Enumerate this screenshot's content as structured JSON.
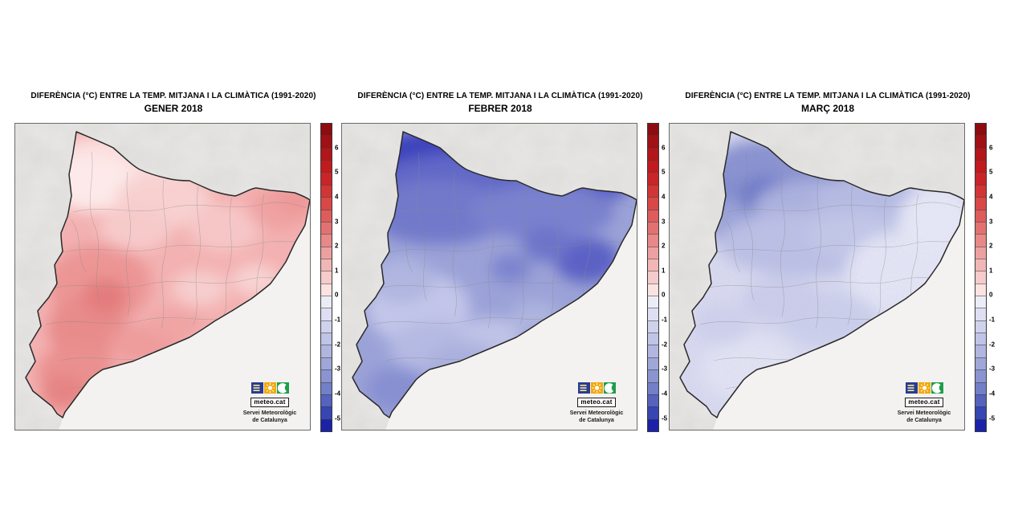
{
  "panels": [
    {
      "title_line1": "DIFERÈNCIA (°C) ENTRE LA TEMP. MITJANA I LA CLIMÀTICA (1991-2020)",
      "title_line2": "GENER 2018",
      "map": {
        "base_color": "#f3b1b1",
        "textured": false,
        "blobs": [
          [
            120,
            55,
            95,
            40,
            "#fbdede"
          ],
          [
            95,
            75,
            55,
            35,
            "#fde9e9"
          ],
          [
            185,
            95,
            60,
            35,
            "#f8d0d0"
          ],
          [
            150,
            130,
            45,
            28,
            "#f7caca"
          ],
          [
            260,
            130,
            45,
            30,
            "#f6c6c6"
          ],
          [
            230,
            205,
            35,
            22,
            "#f7cdcd"
          ],
          [
            300,
            195,
            30,
            20,
            "#f8d2d2"
          ],
          [
            105,
            200,
            65,
            50,
            "#ec9595"
          ],
          [
            90,
            255,
            50,
            40,
            "#e88b8b"
          ],
          [
            112,
            215,
            28,
            22,
            "#e37d7d"
          ],
          [
            75,
            310,
            48,
            35,
            "#ea9090"
          ],
          [
            60,
            335,
            28,
            22,
            "#e68484"
          ],
          [
            160,
            275,
            45,
            25,
            "#ee9c9c"
          ],
          [
            200,
            250,
            35,
            20,
            "#f0a4a4"
          ],
          [
            330,
            105,
            40,
            28,
            "#f0a2a2"
          ],
          [
            350,
            95,
            25,
            18,
            "#ed9898"
          ]
        ]
      }
    },
    {
      "title_line1": "DIFERÈNCIA (°C) ENTRE LA TEMP. MITJANA I LA CLIMÀTICA (1991-2020)",
      "title_line2": "FEBRER 2018",
      "map": {
        "base_color": "#9ba2d7",
        "textured": false,
        "blobs": [
          [
            140,
            40,
            110,
            35,
            "#3d42bb"
          ],
          [
            230,
            65,
            80,
            28,
            "#474cc0"
          ],
          [
            300,
            75,
            60,
            25,
            "#585ec6"
          ],
          [
            170,
            80,
            140,
            45,
            "#6168c7"
          ],
          [
            120,
            110,
            90,
            40,
            "#7279cb"
          ],
          [
            250,
            110,
            90,
            35,
            "#7a81ce"
          ],
          [
            305,
            170,
            40,
            28,
            "#5b62c5"
          ],
          [
            255,
            150,
            30,
            22,
            "#6d74ca"
          ],
          [
            210,
            180,
            25,
            18,
            "#7d84cf"
          ],
          [
            95,
            230,
            65,
            45,
            "#c2c6e9"
          ],
          [
            115,
            280,
            55,
            35,
            "#b5bae3"
          ],
          [
            75,
            195,
            40,
            28,
            "#b0b6e0"
          ],
          [
            185,
            265,
            38,
            24,
            "#bfc3e7"
          ],
          [
            150,
            300,
            45,
            28,
            "#aab0dd"
          ],
          [
            240,
            240,
            30,
            20,
            "#aeb4df"
          ],
          [
            120,
            345,
            55,
            30,
            "#9199d4"
          ],
          [
            70,
            330,
            40,
            28,
            "#8890d1"
          ]
        ]
      }
    },
    {
      "title_line1": "DIFERÈNCIA (°C) ENTRE LA TEMP. MITJANA I LA CLIMÀTICA (1991-2020)",
      "title_line2": "MARÇ 2018",
      "map": {
        "base_color": "#dadbf0",
        "textured": true,
        "blobs": [
          [
            115,
            75,
            75,
            55,
            "#7e88cc"
          ],
          [
            145,
            55,
            85,
            35,
            "#8790cf"
          ],
          [
            100,
            125,
            55,
            35,
            "#99a1d7"
          ],
          [
            118,
            90,
            32,
            24,
            "#6974c6"
          ],
          [
            185,
            105,
            80,
            35,
            "#aab0de"
          ],
          [
            250,
            95,
            70,
            30,
            "#b6bbe3"
          ],
          [
            170,
            150,
            110,
            40,
            "#bcc0e5"
          ],
          [
            230,
            140,
            60,
            30,
            "#c3c7e8"
          ],
          [
            290,
            185,
            70,
            50,
            "#e6e7f6"
          ],
          [
            330,
            120,
            45,
            40,
            "#e9eaf7"
          ],
          [
            100,
            305,
            60,
            40,
            "#e4e5f4"
          ],
          [
            250,
            300,
            70,
            35,
            "#e7e8f6"
          ],
          [
            180,
            330,
            55,
            28,
            "#e2e3f3"
          ],
          [
            310,
            240,
            45,
            30,
            "#e3e4f4"
          ],
          [
            200,
            245,
            60,
            35,
            "#cdd0ec"
          ],
          [
            140,
            220,
            50,
            30,
            "#ccceeb"
          ],
          [
            65,
            250,
            35,
            25,
            "#d0d2ed"
          ]
        ]
      }
    }
  ],
  "colorbar": {
    "top_value": 7.0,
    "bottom_value": -5.5,
    "step": 0.5,
    "tick_labels": [
      "6",
      "5",
      "4",
      "3",
      "2",
      "1",
      "0",
      "-1",
      "-2",
      "-3",
      "-4",
      "-5"
    ],
    "tick_values": [
      6,
      5,
      4,
      3,
      2,
      1,
      0,
      -1,
      -2,
      -3,
      -4,
      -5
    ],
    "segments_top_to_bottom": [
      "#8e0b10",
      "#a01015",
      "#b2151a",
      "#c11b1f",
      "#cb2428",
      "#d23535",
      "#d84848",
      "#de5c5c",
      "#e37171",
      "#e88888",
      "#eda0a0",
      "#f2b6b6",
      "#f6cbcb",
      "#fae3e1",
      "#ececf7",
      "#dedff2",
      "#cfd2ec",
      "#c0c4e6",
      "#b0b6df",
      "#9fa7d8",
      "#8a94d0",
      "#7380c7",
      "#5563bd",
      "#3646b2",
      "#1b22a8"
    ]
  },
  "logo": {
    "name": "meteo.cat",
    "org_line1": "Servei Meteorològic",
    "org_line2": "de Catalunya",
    "square_blue": "#2a3b8f",
    "square_orange": "#f2a90d",
    "square_green": "#1e9e4b"
  },
  "map_region_colors": {
    "background_land": "#e9e8e6",
    "sea": "#f3f2f0",
    "catalonia_border": "#2a2a2a",
    "comarca_lines": "#8a8a8a"
  }
}
